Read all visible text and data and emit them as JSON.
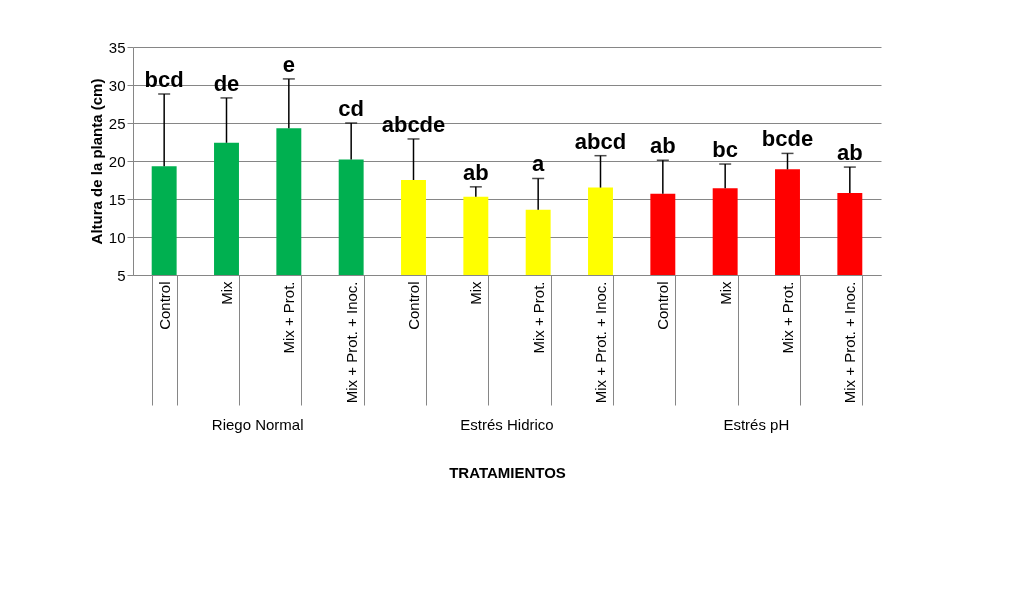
{
  "chart_data": {
    "type": "bar",
    "xlabel": "TRATAMIENTOS",
    "ylabel": "Altura de la planta (cm)",
    "categories": [
      "Control",
      "Mix",
      "Mix + Prot.",
      "Mix + Prot. + Inoc.",
      "Control",
      "Mix",
      "Mix + Prot.",
      "Mix + Prot. + Inoc.",
      "Control",
      "Mix",
      "Mix + Prot.",
      "Mix + Prot. + Inoc."
    ],
    "series": [
      {
        "name": "Riego Normal",
        "color": "#00b050",
        "values": [
          19.3,
          22.4,
          24.3,
          20.2,
          null,
          null,
          null,
          null,
          null,
          null,
          null,
          null
        ],
        "errors": [
          [
            19.3,
            28.8
          ],
          [
            22.4,
            28.3
          ],
          [
            24.3,
            30.8
          ],
          [
            20.2,
            25.0
          ],
          null,
          null,
          null,
          null,
          null,
          null,
          null,
          null
        ]
      },
      {
        "name": "Estrés Hidrico",
        "color": "#ffff00",
        "values": [
          null,
          null,
          null,
          null,
          17.5,
          15.3,
          13.6,
          16.5,
          null,
          null,
          null,
          null
        ],
        "errors": [
          null,
          null,
          null,
          null,
          [
            17.5,
            22.9
          ],
          [
            15.3,
            16.6
          ],
          [
            13.6,
            17.7
          ],
          [
            16.5,
            20.7
          ],
          null,
          null,
          null,
          null
        ]
      },
      {
        "name": "Estrés pH",
        "color": "#ff0000",
        "values": [
          null,
          null,
          null,
          null,
          null,
          null,
          null,
          null,
          15.7,
          16.4,
          18.9,
          15.8
        ],
        "errors": [
          null,
          null,
          null,
          null,
          null,
          null,
          null,
          null,
          [
            15.7,
            20.1
          ],
          [
            16.4,
            19.6
          ],
          [
            18.9,
            21.0
          ],
          [
            15.8,
            19.2
          ]
        ]
      }
    ],
    "annotations": [
      "bcd",
      "de",
      "e",
      "cd",
      "abcde",
      "ab",
      "a",
      "abcd",
      "ab",
      "bc",
      "bcde",
      "ab"
    ],
    "ylim": [
      5,
      35
    ],
    "yticks": [
      5,
      10,
      15,
      20,
      25,
      30,
      35
    ],
    "grid": "y",
    "legend": false
  }
}
